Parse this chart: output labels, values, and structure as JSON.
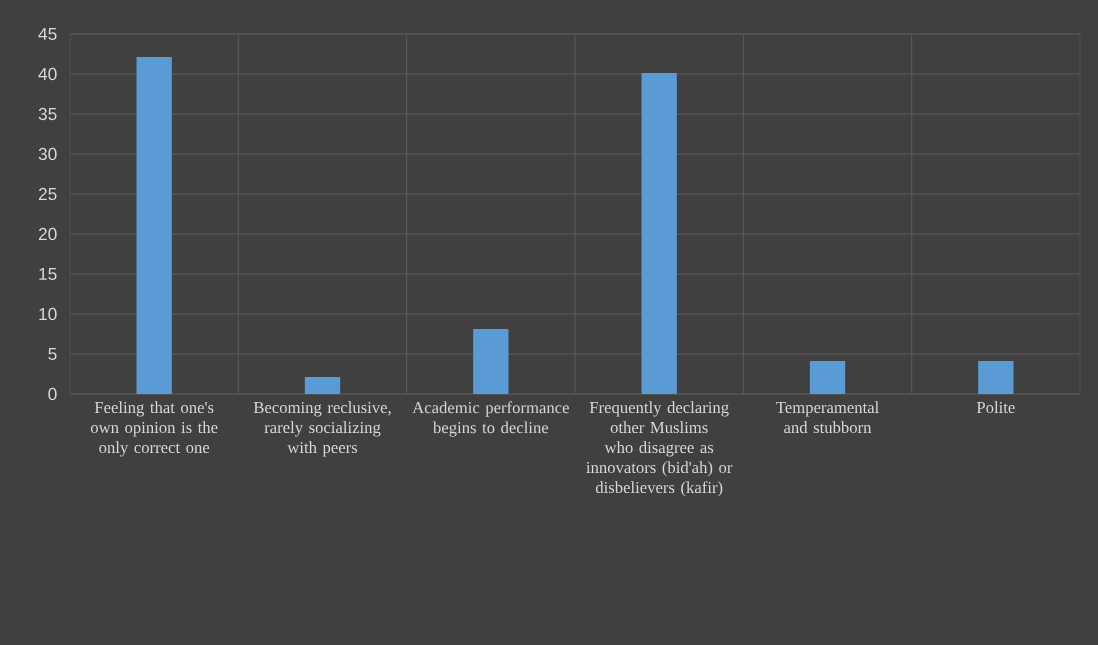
{
  "chart_data": {
    "type": "bar",
    "categories": [
      "Feeling that one's own opinion is the only correct one",
      "Becoming reclusive, rarely socializing with peers",
      "Academic performance begins to decline",
      "Frequently declaring other Muslims who disagree as innovators (bid'ah) or disbelievers (kafir)",
      "Temperamental and stubborn",
      "Polite"
    ],
    "values": [
      42,
      2,
      8,
      40,
      4,
      4
    ],
    "color": "#5b9bd5",
    "ylim": [
      0,
      45
    ],
    "yticks": [
      0,
      5,
      10,
      15,
      20,
      25,
      30,
      35,
      40,
      45
    ],
    "grid": true
  }
}
